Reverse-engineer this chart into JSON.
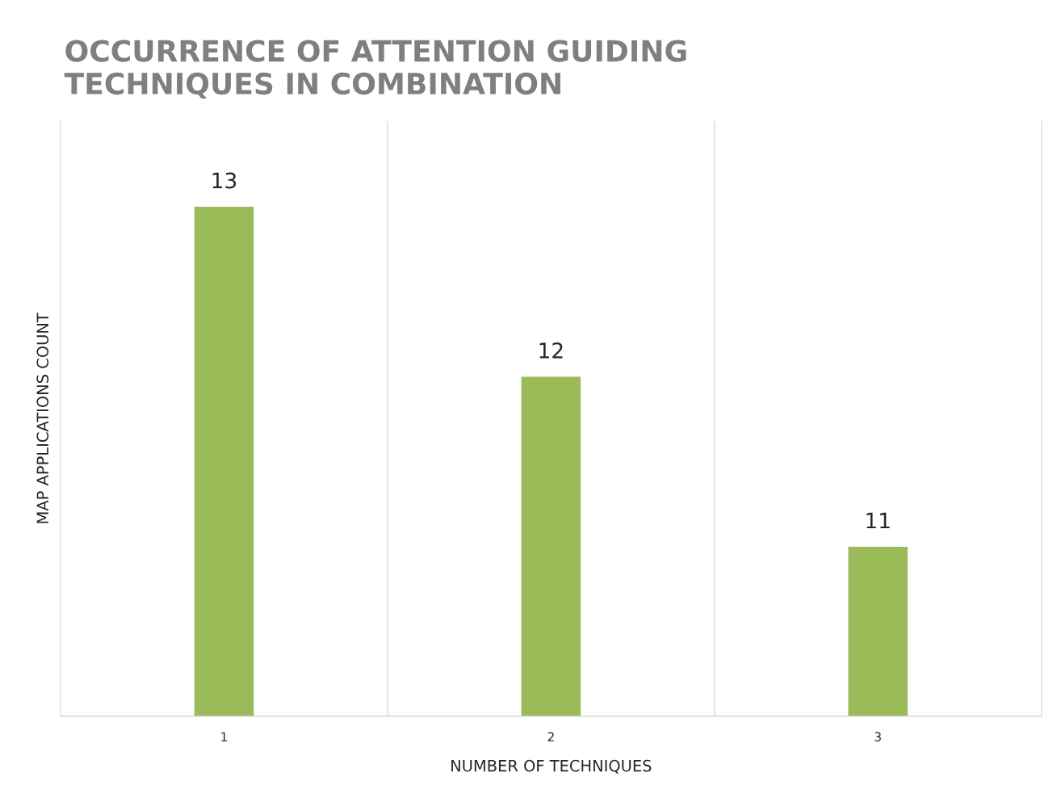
{
  "chart_data": {
    "type": "bar",
    "title": "OCCURRENCE OF ATTENTION GUIDING\nTECHNIQUES IN COMBINATION",
    "xlabel": "NUMBER OF TECHNIQUES",
    "ylabel": "MAP APPLICATIONS COUNT",
    "categories": [
      "1",
      "2",
      "3"
    ],
    "values": [
      13,
      12,
      11
    ],
    "color": "#9bbb59",
    "ylim": [
      10,
      13.5
    ],
    "tick_labels": "x",
    "data_labels": true,
    "grid": "x",
    "legend": false
  }
}
